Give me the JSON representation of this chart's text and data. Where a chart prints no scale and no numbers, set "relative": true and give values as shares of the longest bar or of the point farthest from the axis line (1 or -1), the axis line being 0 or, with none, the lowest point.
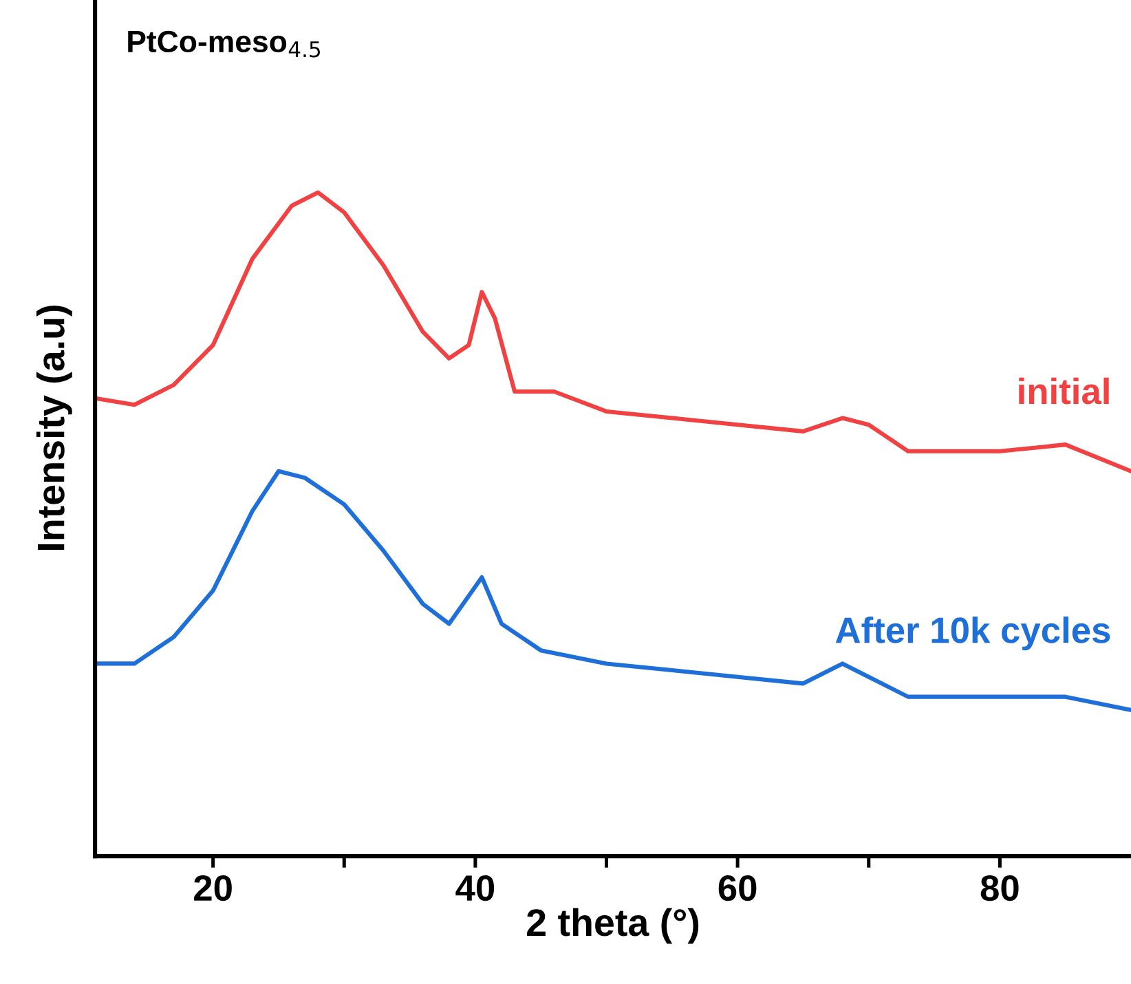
{
  "chart_data": {
    "type": "line",
    "relative": true,
    "xlabel": "2 theta (°)",
    "ylabel": "Intensity (a.u)",
    "annotations": [
      "PtCo-meso$_{4.5}$"
    ],
    "xlim": [
      11,
      90
    ],
    "xticks": [
      20,
      {
        "value": 30,
        "label": null
      },
      40,
      {
        "value": 50,
        "label": null
      },
      60,
      {
        "value": 70,
        "label": null
      },
      80
    ],
    "grid": false,
    "legend": false,
    "tick_labels": "x",
    "series": [
      {
        "name": "initial",
        "color": "#f04242",
        "x": [
          11,
          14,
          17,
          20,
          23,
          26,
          28,
          30,
          33,
          36,
          38,
          39.5,
          40.5,
          41.5,
          43,
          46,
          50,
          55,
          60,
          65,
          68,
          70,
          73,
          80,
          85,
          90
        ],
        "values": [
          0.69,
          0.68,
          0.71,
          0.77,
          0.9,
          0.98,
          1.0,
          0.97,
          0.89,
          0.79,
          0.75,
          0.77,
          0.85,
          0.81,
          0.7,
          0.7,
          0.67,
          0.66,
          0.65,
          0.64,
          0.66,
          0.65,
          0.61,
          0.61,
          0.62,
          0.58
        ]
      },
      {
        "name": "After 10k cycles",
        "color": "#1f6fd8",
        "x": [
          11,
          14,
          17,
          20,
          23,
          25,
          27,
          30,
          33,
          36,
          38,
          40.5,
          42,
          45,
          50,
          55,
          60,
          65,
          68,
          70,
          73,
          80,
          85,
          90
        ],
        "values": [
          0.29,
          0.29,
          0.33,
          0.4,
          0.52,
          0.58,
          0.57,
          0.53,
          0.46,
          0.38,
          0.35,
          0.42,
          0.35,
          0.31,
          0.29,
          0.28,
          0.27,
          0.26,
          0.29,
          0.27,
          0.24,
          0.24,
          0.24,
          0.22
        ]
      }
    ]
  }
}
